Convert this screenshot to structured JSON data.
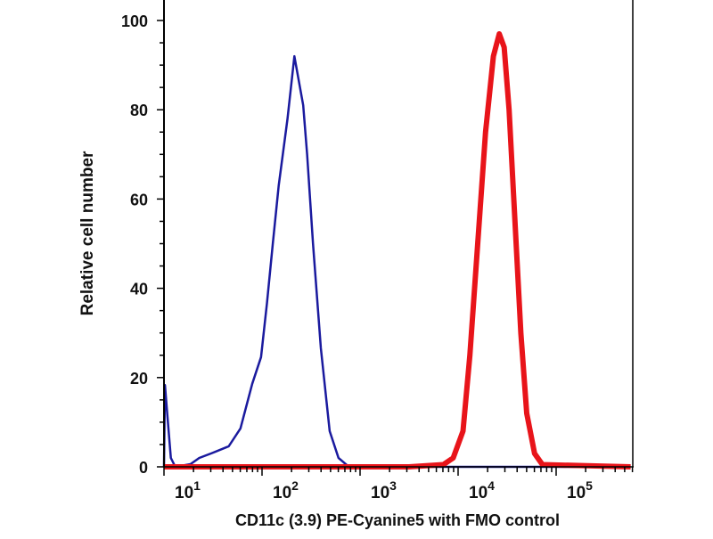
{
  "chart_data": {
    "type": "line",
    "title": "",
    "xlabel": "CD11c (3.9) PE-Cyanine5 with FMO control",
    "ylabel": "Relative cell number",
    "xscale": "log",
    "xlim_log10": [
      1.0,
      5.76
    ],
    "ylim": [
      0,
      100
    ],
    "grid": false,
    "x_ticks": [
      {
        "base": "10",
        "exp": "1",
        "log": 1
      },
      {
        "base": "10",
        "exp": "2",
        "log": 2
      },
      {
        "base": "10",
        "exp": "3",
        "log": 3
      },
      {
        "base": "10",
        "exp": "4",
        "log": 4
      },
      {
        "base": "10",
        "exp": "5",
        "log": 5
      }
    ],
    "y_ticks": [
      {
        "label": "0",
        "v": 0
      },
      {
        "label": "20",
        "v": 20
      },
      {
        "label": "40",
        "v": 40
      },
      {
        "label": "60",
        "v": 60
      },
      {
        "label": "80",
        "v": 80
      },
      {
        "label": "100",
        "v": 100
      }
    ],
    "series": [
      {
        "name": "FMO control",
        "color": "#1a1a9e",
        "log10_x": [
          1.0,
          1.01,
          1.04,
          1.07,
          1.115,
          1.27,
          1.36,
          1.48,
          1.66,
          1.78,
          1.9,
          1.99,
          2.05,
          2.11,
          2.17,
          2.26,
          2.33,
          2.42,
          2.46,
          2.52,
          2.6,
          2.69,
          2.78,
          2.87,
          3.2,
          5.76
        ],
        "y": [
          0,
          18.3,
          10,
          2,
          0,
          0.6,
          2,
          3,
          4.6,
          8.6,
          18.6,
          24.6,
          36.6,
          50,
          63,
          78,
          92,
          81,
          70,
          50,
          26.6,
          8,
          2,
          0.3,
          0,
          0
        ]
      },
      {
        "name": "CD11c (3.9) PE-Cyanine5",
        "color": "#e8141a",
        "log10_x": [
          1.0,
          3.5,
          3.85,
          3.95,
          4.05,
          4.12,
          4.2,
          4.28,
          4.36,
          4.42,
          4.47,
          4.52,
          4.58,
          4.64,
          4.7,
          4.78,
          4.86,
          5.76
        ],
        "y": [
          0,
          0,
          0.5,
          2,
          8,
          25,
          50,
          75,
          92,
          97,
          94,
          80,
          55,
          30,
          12,
          3,
          0.5,
          0
        ]
      }
    ]
  }
}
